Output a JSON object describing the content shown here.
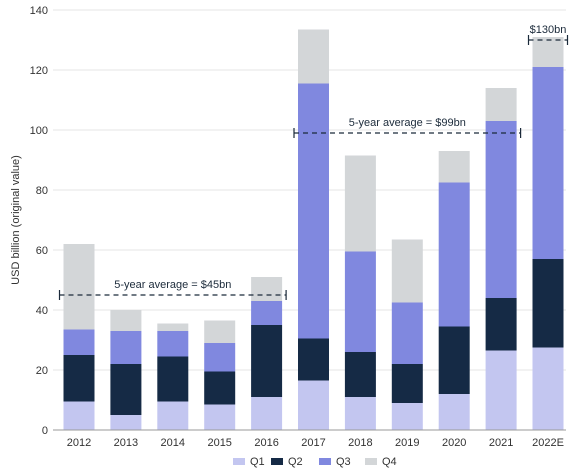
{
  "chart_data": {
    "type": "bar",
    "stacked": true,
    "ylabel": "USD billion (original value)",
    "ylim": [
      0,
      140
    ],
    "yticks": [
      0,
      20,
      40,
      60,
      80,
      100,
      120,
      140
    ],
    "grid": "horizontal",
    "legend_position": "bottom",
    "categories": [
      "2012",
      "2013",
      "2014",
      "2015",
      "2016",
      "2017",
      "2018",
      "2019",
      "2020",
      "2021",
      "2022E"
    ],
    "series": [
      {
        "name": "Q1",
        "color": "#c3c6f0",
        "values": [
          9.5,
          5,
          9.5,
          8.5,
          11,
          16.5,
          11,
          9,
          12,
          26.5,
          27.5
        ]
      },
      {
        "name": "Q2",
        "color": "#152a45",
        "values": [
          15.5,
          17,
          15,
          11,
          24,
          14,
          15,
          13,
          22.5,
          17.5,
          29.5
        ]
      },
      {
        "name": "Q3",
        "color": "#8088df",
        "values": [
          8.5,
          11,
          8.5,
          9.5,
          8,
          85,
          33.5,
          20.5,
          48,
          59,
          64
        ]
      },
      {
        "name": "Q4",
        "color": "#d3d6d8",
        "values": [
          28.5,
          7,
          2.5,
          7.5,
          8,
          18,
          32,
          21,
          10.5,
          11,
          10
        ]
      }
    ],
    "annotations": [
      {
        "text": "5-year average = $45bn",
        "from": "2012",
        "to": "2016",
        "value": 45
      },
      {
        "text": "5-year average = $99bn",
        "from": "2017",
        "to": "2021",
        "value": 99
      },
      {
        "text": "$130bn",
        "from": "2022E",
        "to": "2022E",
        "value": 130
      }
    ]
  }
}
